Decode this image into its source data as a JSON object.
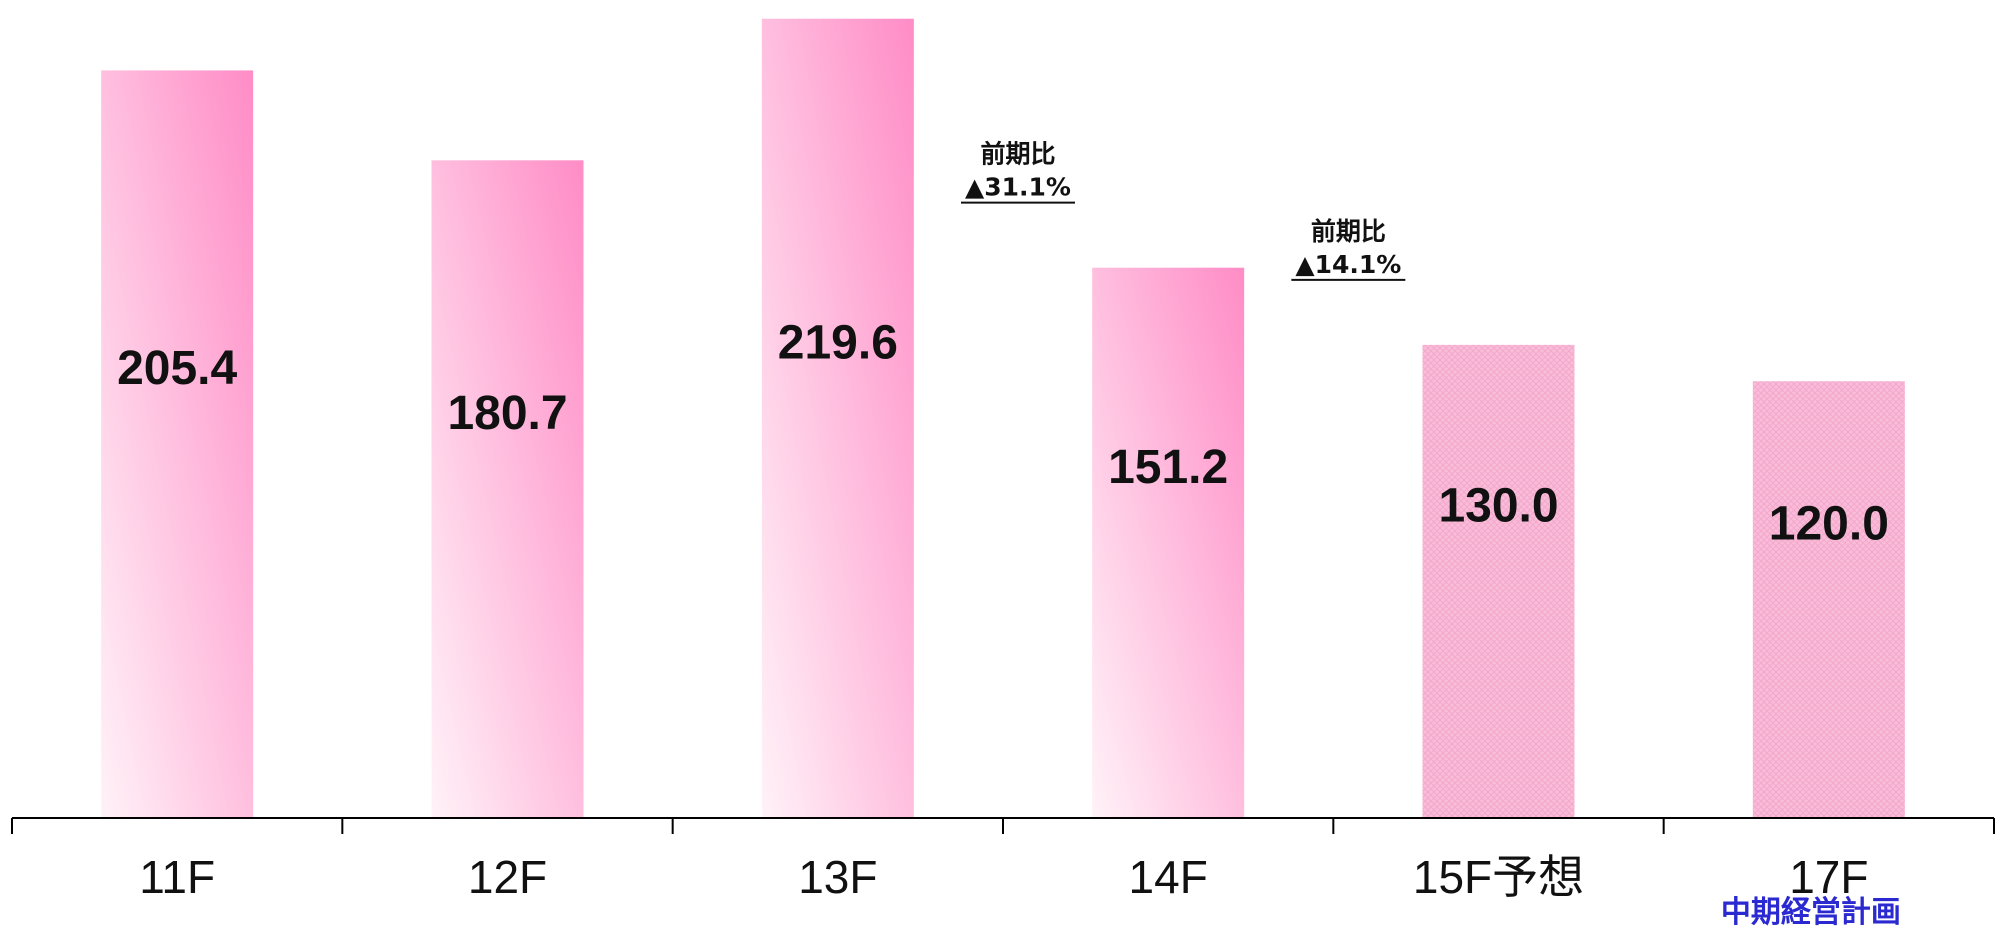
{
  "chart_data": {
    "type": "bar",
    "categories": [
      "11F",
      "12F",
      "13F",
      "14F",
      "15F予想",
      "17F"
    ],
    "values": [
      205.4,
      180.7,
      219.6,
      151.2,
      130.0,
      120.0
    ],
    "value_labels": [
      "205.4",
      "180.7",
      "219.6",
      "151.2",
      "130.0",
      "120.0"
    ],
    "forecast_flags": [
      false,
      false,
      false,
      false,
      true,
      true
    ],
    "ylim": [
      0,
      222
    ],
    "grid": false,
    "legend": "none",
    "annotations": [
      {
        "after": "13F",
        "line1": "前期比",
        "line2": "▲31.1%"
      },
      {
        "after": "14F",
        "line1": "前期比",
        "line2": "▲14.1%"
      }
    ],
    "sub_label": {
      "category": "17F",
      "text": "中期経営計画"
    },
    "colors": {
      "bar_solid": "#ff8cc6",
      "bar_light": "#fff2f8",
      "bar_forecast": "#f9bcd9",
      "axis": "#000000",
      "plan_text": "#2a2ad0"
    }
  }
}
